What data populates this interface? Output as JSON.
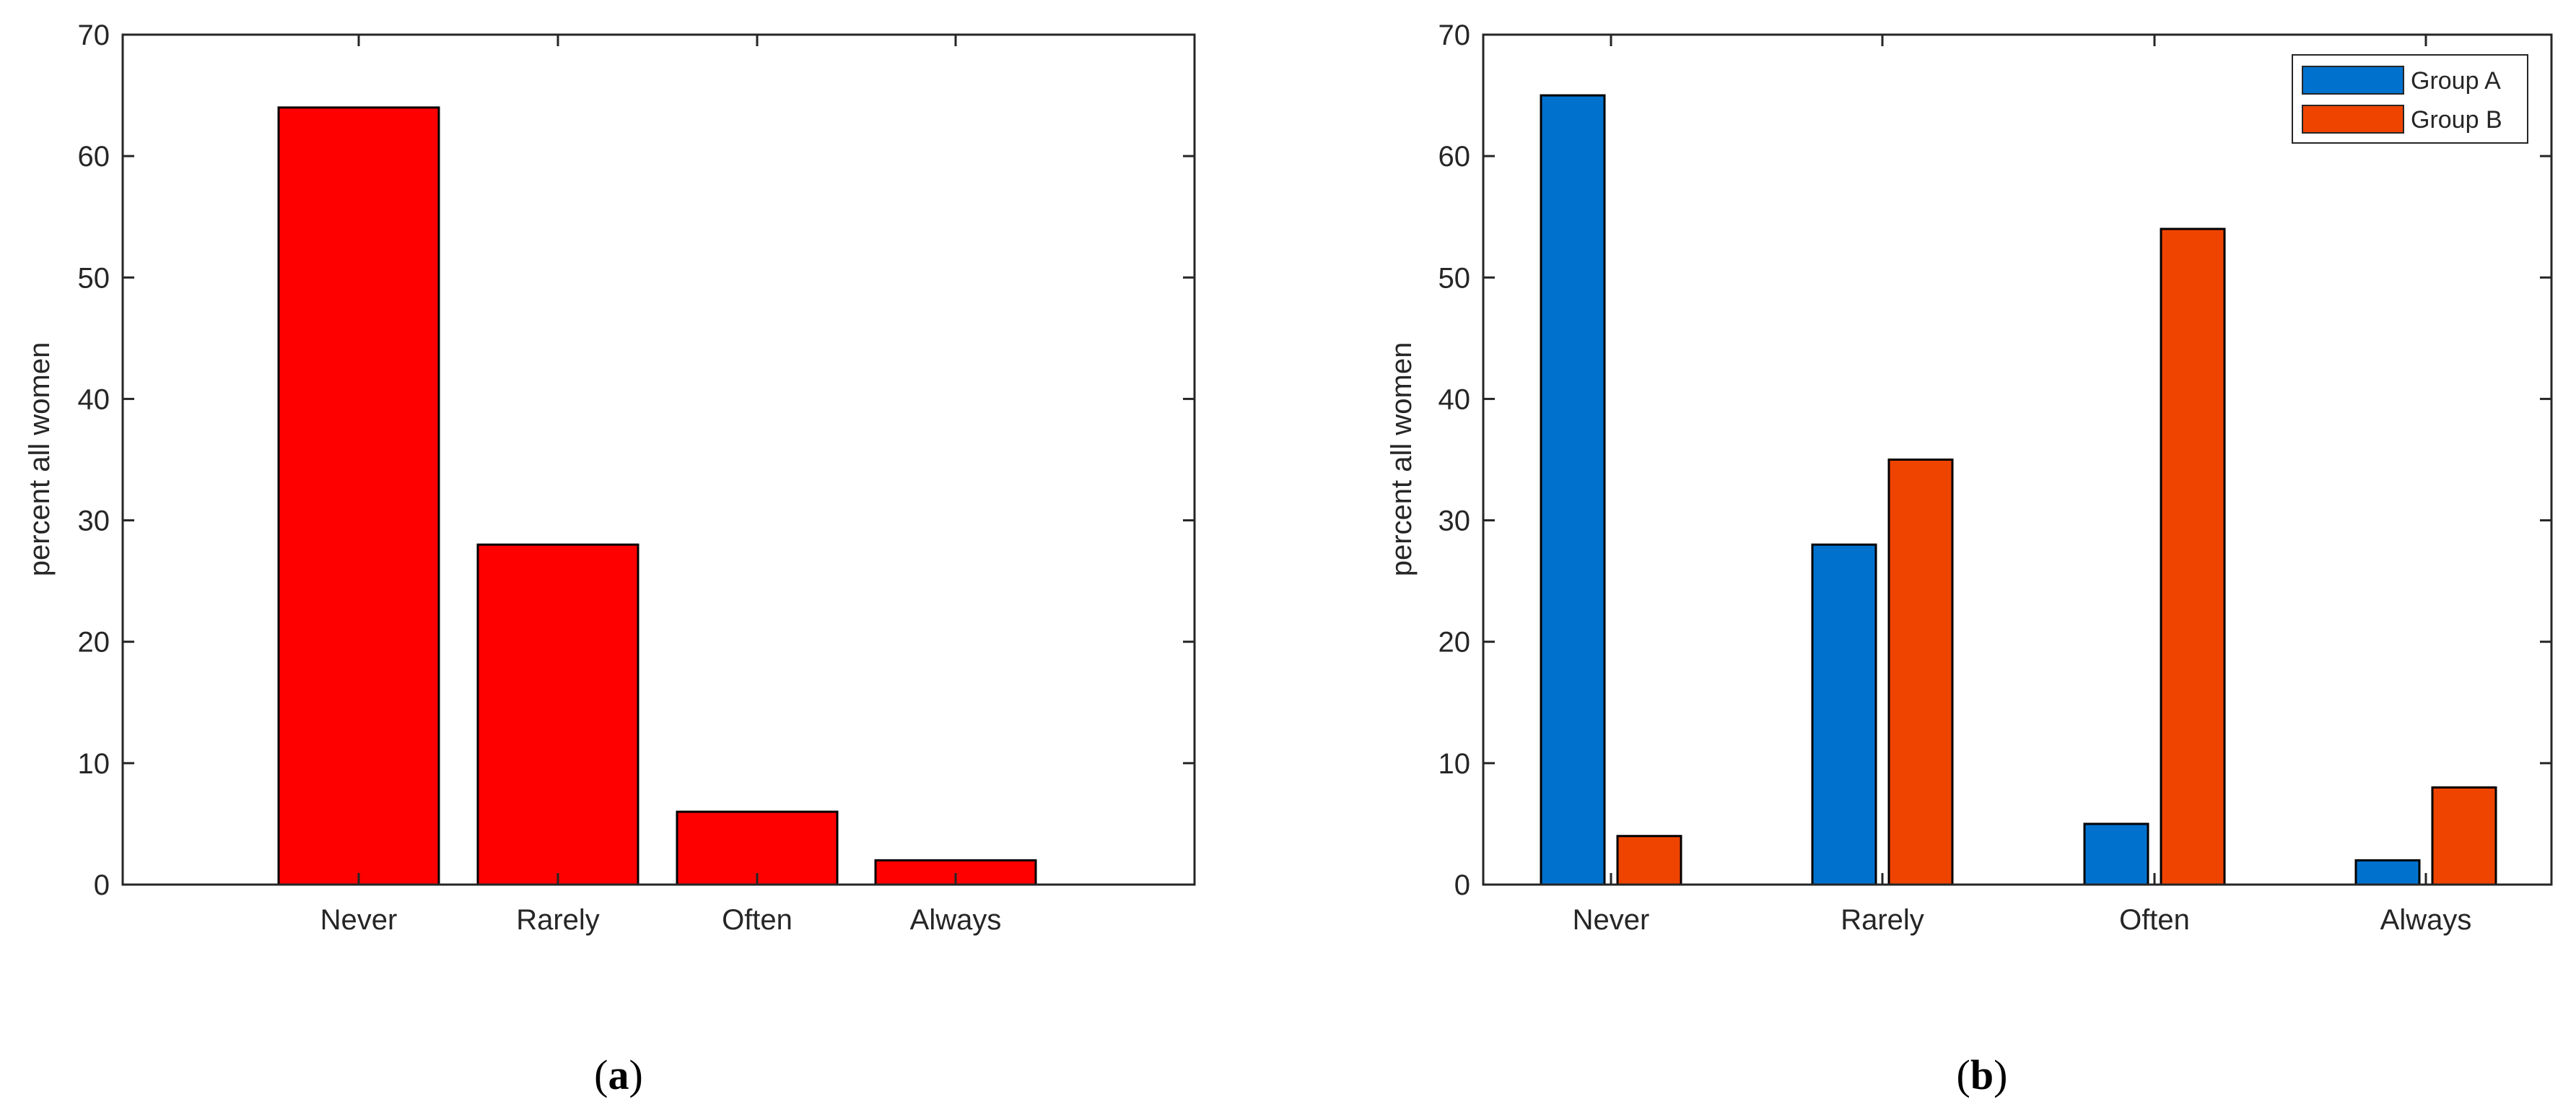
{
  "chart_data": [
    {
      "type": "bar",
      "panel_label": "a",
      "categories": [
        "Never",
        "Rarely",
        "Often",
        "Always"
      ],
      "series": [
        {
          "values": [
            64,
            28,
            6,
            2
          ],
          "color": "#FF0000"
        }
      ],
      "ylabel": "percent all women",
      "xlabel": "",
      "ylim": [
        0,
        70
      ],
      "yticks": [
        0,
        10,
        20,
        30,
        40,
        50,
        60,
        70
      ],
      "grid": false
    },
    {
      "type": "bar",
      "panel_label": "b",
      "categories": [
        "Never",
        "Rarely",
        "Often",
        "Always"
      ],
      "series": [
        {
          "name": "Group A",
          "values": [
            65,
            28,
            5,
            2
          ],
          "color": "#0072CE"
        },
        {
          "name": "Group B",
          "values": [
            4,
            35,
            54,
            8
          ],
          "color": "#EF4400"
        }
      ],
      "ylabel": "percent all women",
      "xlabel": "",
      "ylim": [
        0,
        70
      ],
      "yticks": [
        0,
        10,
        20,
        30,
        40,
        50,
        60,
        70
      ],
      "grid": false,
      "legend_position": "top-right"
    }
  ]
}
